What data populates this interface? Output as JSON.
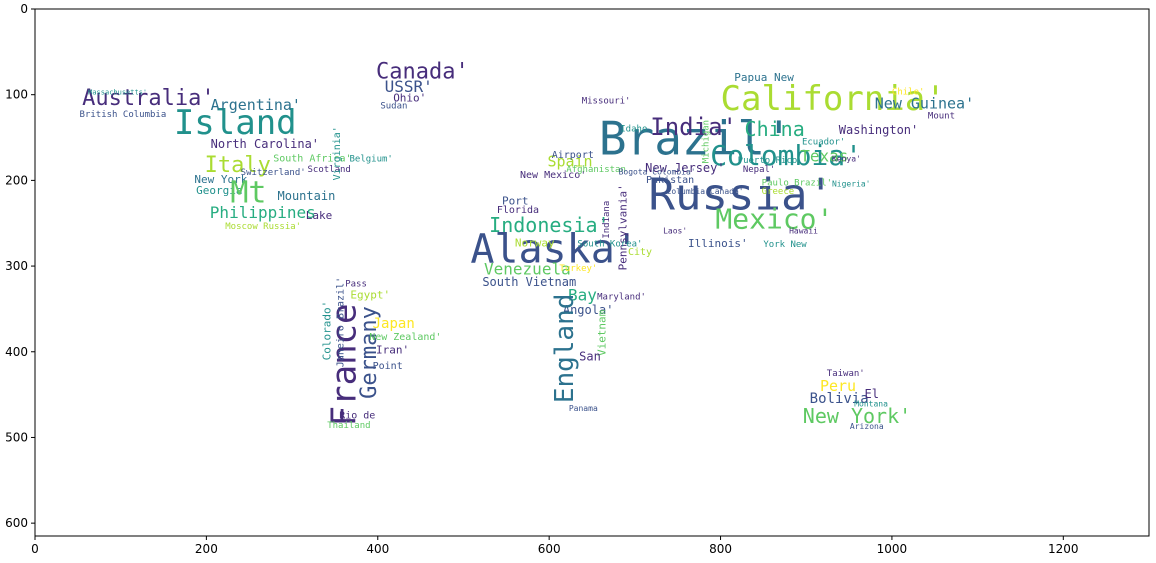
{
  "chart_data": {
    "type": "wordcloud",
    "title": "",
    "xlabel": "",
    "ylabel": "",
    "xlim": [
      0,
      1300
    ],
    "ylim": [
      615,
      0
    ],
    "x_ticks": [
      0,
      200,
      400,
      600,
      800,
      1000,
      1200
    ],
    "y_ticks": [
      0,
      100,
      200,
      300,
      400,
      500,
      600
    ],
    "grid": false,
    "palette": [
      "#440154",
      "#3b528b",
      "#21918c",
      "#5ec962",
      "#fde725",
      "#2c728e",
      "#27ad81",
      "#aadc32",
      "#472d7b"
    ],
    "words": [
      {
        "text": "Australia'",
        "x": 55,
        "y": 112,
        "size": 22,
        "color": "#472d7b",
        "rotate": 0
      },
      {
        "text": "British Columbia",
        "x": 52,
        "y": 126,
        "size": 9,
        "color": "#3b528b",
        "rotate": 0
      },
      {
        "text": "Massachusetts'",
        "x": 62,
        "y": 100,
        "size": 7,
        "color": "#21918c",
        "rotate": 0
      },
      {
        "text": "Island",
        "x": 162,
        "y": 146,
        "size": 34,
        "color": "#21918c",
        "rotate": 0
      },
      {
        "text": "Argentina'",
        "x": 205,
        "y": 118,
        "size": 15,
        "color": "#2c728e",
        "rotate": 0
      },
      {
        "text": "North Carolina'",
        "x": 205,
        "y": 162,
        "size": 12,
        "color": "#472d7b",
        "rotate": 0
      },
      {
        "text": "Italy",
        "x": 198,
        "y": 190,
        "size": 22,
        "color": "#aadc32",
        "rotate": 0
      },
      {
        "text": "South Africa'",
        "x": 278,
        "y": 178,
        "size": 10,
        "color": "#5ec962",
        "rotate": 0
      },
      {
        "text": "Switzerland'",
        "x": 240,
        "y": 194,
        "size": 9,
        "color": "#3b528b",
        "rotate": 0
      },
      {
        "text": "New York",
        "x": 186,
        "y": 203,
        "size": 11,
        "color": "#2c728e",
        "rotate": 0
      },
      {
        "text": "Scotland",
        "x": 318,
        "y": 190,
        "size": 9,
        "color": "#472d7b",
        "rotate": 0
      },
      {
        "text": "Georgia'",
        "x": 188,
        "y": 216,
        "size": 11,
        "color": "#21918c",
        "rotate": 0
      },
      {
        "text": "Mt",
        "x": 228,
        "y": 226,
        "size": 30,
        "color": "#5ec962",
        "rotate": 0
      },
      {
        "text": "Mountain",
        "x": 283,
        "y": 223,
        "size": 12,
        "color": "#2c728e",
        "rotate": 0
      },
      {
        "text": "Philippines",
        "x": 204,
        "y": 244,
        "size": 16,
        "color": "#27ad81",
        "rotate": 0
      },
      {
        "text": "Lake",
        "x": 316,
        "y": 245,
        "size": 11,
        "color": "#472d7b",
        "rotate": 0
      },
      {
        "text": "Moscow Russia'",
        "x": 222,
        "y": 257,
        "size": 9,
        "color": "#aadc32",
        "rotate": 0
      },
      {
        "text": "Virginia'",
        "x": 356,
        "y": 200,
        "size": 10,
        "color": "#21918c",
        "rotate": -90
      },
      {
        "text": "Belgium'",
        "x": 367,
        "y": 178,
        "size": 9,
        "color": "#21918c",
        "rotate": 0
      },
      {
        "text": "Canada'",
        "x": 398,
        "y": 81,
        "size": 22,
        "color": "#472d7b",
        "rotate": 0
      },
      {
        "text": "USSR'",
        "x": 408,
        "y": 97,
        "size": 16,
        "color": "#3b528b",
        "rotate": 0
      },
      {
        "text": "Ohio'",
        "x": 418,
        "y": 108,
        "size": 11,
        "color": "#472d7b",
        "rotate": 0
      },
      {
        "text": "Sudan",
        "x": 403,
        "y": 116,
        "size": 9,
        "color": "#3b528b",
        "rotate": 0
      },
      {
        "text": "France",
        "x": 374,
        "y": 487,
        "size": 34,
        "color": "#472d7b",
        "rotate": -90
      },
      {
        "text": "Germany",
        "x": 398,
        "y": 455,
        "size": 22,
        "color": "#3b528b",
        "rotate": -90
      },
      {
        "text": "Colorado'",
        "x": 345,
        "y": 410,
        "size": 11,
        "color": "#21918c",
        "rotate": -90
      },
      {
        "text": "Janeiro Brazil'",
        "x": 360,
        "y": 418,
        "size": 10,
        "color": "#3b528b",
        "rotate": -90
      },
      {
        "text": "Egypt'",
        "x": 368,
        "y": 338,
        "size": 11,
        "color": "#aadc32",
        "rotate": 0
      },
      {
        "text": "Pass",
        "x": 362,
        "y": 324,
        "size": 9,
        "color": "#472d7b",
        "rotate": 0
      },
      {
        "text": "Japan",
        "x": 394,
        "y": 372,
        "size": 14,
        "color": "#fde725",
        "rotate": 0
      },
      {
        "text": "New Zealand'",
        "x": 390,
        "y": 386,
        "size": 10,
        "color": "#5ec962",
        "rotate": 0
      },
      {
        "text": "Iran'",
        "x": 398,
        "y": 402,
        "size": 11,
        "color": "#472d7b",
        "rotate": 0
      },
      {
        "text": "Point",
        "x": 394,
        "y": 420,
        "size": 10,
        "color": "#3b528b",
        "rotate": 0
      },
      {
        "text": "Rio de",
        "x": 355,
        "y": 478,
        "size": 10,
        "color": "#472d7b",
        "rotate": 0
      },
      {
        "text": "Thailand",
        "x": 341,
        "y": 489,
        "size": 9,
        "color": "#5ec962",
        "rotate": 0
      },
      {
        "text": "Brazil'",
        "x": 658,
        "y": 170,
        "size": 46,
        "color": "#2c728e",
        "rotate": 0
      },
      {
        "text": "Russia'",
        "x": 716,
        "y": 234,
        "size": 44,
        "color": "#3b528b",
        "rotate": 0
      },
      {
        "text": "Alaska'",
        "x": 508,
        "y": 296,
        "size": 40,
        "color": "#3b528b",
        "rotate": 0
      },
      {
        "text": "California'",
        "x": 800,
        "y": 118,
        "size": 34,
        "color": "#aadc32",
        "rotate": 0
      },
      {
        "text": "Colombia'",
        "x": 788,
        "y": 182,
        "size": 28,
        "color": "#21918c",
        "rotate": 0
      },
      {
        "text": "Mexico'",
        "x": 794,
        "y": 256,
        "size": 28,
        "color": "#5ec962",
        "rotate": 0
      },
      {
        "text": "India'",
        "x": 718,
        "y": 147,
        "size": 24,
        "color": "#472d7b",
        "rotate": 0
      },
      {
        "text": "China",
        "x": 828,
        "y": 148,
        "size": 20,
        "color": "#27ad81",
        "rotate": 0
      },
      {
        "text": "New Guinea'",
        "x": 980,
        "y": 116,
        "size": 15,
        "color": "#2c728e",
        "rotate": 0
      },
      {
        "text": "Papua New",
        "x": 816,
        "y": 84,
        "size": 11,
        "color": "#2c728e",
        "rotate": 0
      },
      {
        "text": "Washington'",
        "x": 938,
        "y": 146,
        "size": 12,
        "color": "#472d7b",
        "rotate": 0
      },
      {
        "text": "Texas",
        "x": 893,
        "y": 178,
        "size": 16,
        "color": "#5ec962",
        "rotate": 0
      },
      {
        "text": "New Jersey'",
        "x": 712,
        "y": 190,
        "size": 12,
        "color": "#472d7b",
        "rotate": 0
      },
      {
        "text": "Pakistan",
        "x": 713,
        "y": 203,
        "size": 10,
        "color": "#3b528b",
        "rotate": 0
      },
      {
        "text": "Columbia Canada'",
        "x": 737,
        "y": 216,
        "size": 8,
        "color": "#3b528b",
        "rotate": 0
      },
      {
        "text": "Puerto Rico",
        "x": 820,
        "y": 180,
        "size": 9,
        "color": "#21918c",
        "rotate": 0
      },
      {
        "text": "Nepal'",
        "x": 826,
        "y": 190,
        "size": 9,
        "color": "#472d7b",
        "rotate": 0
      },
      {
        "text": "Ecuador'",
        "x": 895,
        "y": 158,
        "size": 9,
        "color": "#21918c",
        "rotate": 0
      },
      {
        "text": "Paulo Brazil'",
        "x": 848,
        "y": 206,
        "size": 9,
        "color": "#5ec962",
        "rotate": 0
      },
      {
        "text": "Greece",
        "x": 848,
        "y": 216,
        "size": 9,
        "color": "#aadc32",
        "rotate": 0
      },
      {
        "text": "Illinois'",
        "x": 762,
        "y": 278,
        "size": 11,
        "color": "#3b528b",
        "rotate": 0
      },
      {
        "text": "York New",
        "x": 850,
        "y": 278,
        "size": 9,
        "color": "#21918c",
        "rotate": 0
      },
      {
        "text": "Laos'",
        "x": 733,
        "y": 262,
        "size": 8,
        "color": "#472d7b",
        "rotate": 0
      },
      {
        "text": "Hawaii",
        "x": 880,
        "y": 262,
        "size": 8,
        "color": "#472d7b",
        "rotate": 0
      },
      {
        "text": "Kenya'",
        "x": 930,
        "y": 178,
        "size": 8,
        "color": "#472d7b",
        "rotate": 0
      },
      {
        "text": "Nigeria'",
        "x": 930,
        "y": 207,
        "size": 8,
        "color": "#21918c",
        "rotate": 0
      },
      {
        "text": "Chile'",
        "x": 1000,
        "y": 100,
        "size": 9,
        "color": "#fde725",
        "rotate": 0
      },
      {
        "text": "Mount",
        "x": 1042,
        "y": 128,
        "size": 9,
        "color": "#472d7b",
        "rotate": 0
      },
      {
        "text": "Indonesia'",
        "x": 530,
        "y": 260,
        "size": 20,
        "color": "#27ad81",
        "rotate": 0
      },
      {
        "text": "Venezuela",
        "x": 524,
        "y": 310,
        "size": 16,
        "color": "#5ec962",
        "rotate": 0
      },
      {
        "text": "South Vietnam",
        "x": 522,
        "y": 323,
        "size": 12,
        "color": "#3b528b",
        "rotate": 0
      },
      {
        "text": "Norway",
        "x": 560,
        "y": 277,
        "size": 11,
        "color": "#aadc32",
        "rotate": 0
      },
      {
        "text": "Port",
        "x": 545,
        "y": 228,
        "size": 11,
        "color": "#3b528b",
        "rotate": 0
      },
      {
        "text": "Florida",
        "x": 539,
        "y": 238,
        "size": 10,
        "color": "#472d7b",
        "rotate": 0
      },
      {
        "text": "Spain",
        "x": 598,
        "y": 184,
        "size": 15,
        "color": "#aadc32",
        "rotate": 0
      },
      {
        "text": "New Mexico'",
        "x": 566,
        "y": 197,
        "size": 10,
        "color": "#472d7b",
        "rotate": 0
      },
      {
        "text": "Airport",
        "x": 603,
        "y": 174,
        "size": 10,
        "color": "#3b528b",
        "rotate": 0
      },
      {
        "text": "Afghanistan",
        "x": 620,
        "y": 190,
        "size": 9,
        "color": "#5ec962",
        "rotate": 0
      },
      {
        "text": "Bogota Colombia'",
        "x": 681,
        "y": 193,
        "size": 8,
        "color": "#3b528b",
        "rotate": 0
      },
      {
        "text": "Idaho",
        "x": 683,
        "y": 143,
        "size": 9,
        "color": "#21918c",
        "rotate": 0
      },
      {
        "text": "Missouri'",
        "x": 638,
        "y": 110,
        "size": 9,
        "color": "#472d7b",
        "rotate": 0
      },
      {
        "text": "Pennsylvania'",
        "x": 690,
        "y": 305,
        "size": 11,
        "color": "#472d7b",
        "rotate": -90
      },
      {
        "text": "Indiana",
        "x": 670,
        "y": 268,
        "size": 9,
        "color": "#472d7b",
        "rotate": -90
      },
      {
        "text": "Michigan",
        "x": 786,
        "y": 180,
        "size": 9,
        "color": "#5ec962",
        "rotate": -90
      },
      {
        "text": "City",
        "x": 692,
        "y": 287,
        "size": 10,
        "color": "#aadc32",
        "rotate": 0
      },
      {
        "text": "South Korea'",
        "x": 633,
        "y": 277,
        "size": 9,
        "color": "#21918c",
        "rotate": 0
      },
      {
        "text": "Turkey'",
        "x": 612,
        "y": 306,
        "size": 9,
        "color": "#fde725",
        "rotate": 0
      },
      {
        "text": "Bay",
        "x": 622,
        "y": 340,
        "size": 16,
        "color": "#27ad81",
        "rotate": 0
      },
      {
        "text": "Maryland'",
        "x": 656,
        "y": 339,
        "size": 9,
        "color": "#472d7b",
        "rotate": 0
      },
      {
        "text": "Angola'",
        "x": 616,
        "y": 356,
        "size": 12,
        "color": "#3b528b",
        "rotate": 0
      },
      {
        "text": "England",
        "x": 628,
        "y": 460,
        "size": 26,
        "color": "#2c728e",
        "rotate": -90
      },
      {
        "text": "Vietnam",
        "x": 666,
        "y": 405,
        "size": 11,
        "color": "#5ec962",
        "rotate": -90
      },
      {
        "text": "San",
        "x": 635,
        "y": 410,
        "size": 12,
        "color": "#472d7b",
        "rotate": 0
      },
      {
        "text": "Peru",
        "x": 916,
        "y": 446,
        "size": 15,
        "color": "#fde725",
        "rotate": 0
      },
      {
        "text": "Bolivia",
        "x": 904,
        "y": 460,
        "size": 14,
        "color": "#3b528b",
        "rotate": 0
      },
      {
        "text": "El",
        "x": 968,
        "y": 454,
        "size": 12,
        "color": "#472d7b",
        "rotate": 0
      },
      {
        "text": "New York'",
        "x": 896,
        "y": 483,
        "size": 20,
        "color": "#5ec962",
        "rotate": 0
      },
      {
        "text": "Taiwan'",
        "x": 924,
        "y": 428,
        "size": 9,
        "color": "#472d7b",
        "rotate": 0
      },
      {
        "text": "Arizona",
        "x": 951,
        "y": 490,
        "size": 8,
        "color": "#3b528b",
        "rotate": 0
      },
      {
        "text": "Montana",
        "x": 956,
        "y": 464,
        "size": 8,
        "color": "#21918c",
        "rotate": 0
      },
      {
        "text": "Panama",
        "x": 623,
        "y": 469,
        "size": 8,
        "color": "#3b528b",
        "rotate": 0
      }
    ]
  }
}
